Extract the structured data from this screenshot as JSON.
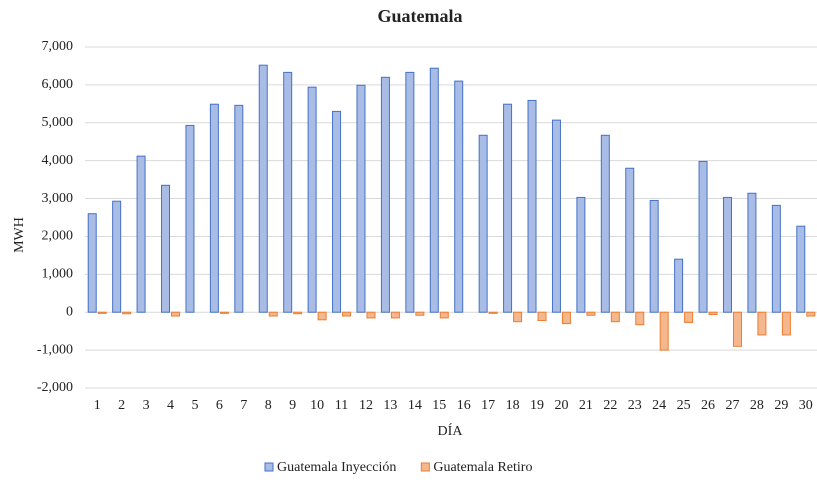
{
  "chart_data": {
    "type": "bar",
    "title": "Guatemala",
    "x_label": "DÍA",
    "y_label": "MWH",
    "categories": [
      "1",
      "2",
      "3",
      "4",
      "5",
      "6",
      "7",
      "8",
      "9",
      "10",
      "11",
      "12",
      "13",
      "14",
      "15",
      "16",
      "17",
      "18",
      "19",
      "20",
      "21",
      "22",
      "23",
      "24",
      "25",
      "26",
      "27",
      "28",
      "29",
      "30"
    ],
    "series": [
      {
        "name": "Guatemala Inyección",
        "color": "#a9bce6",
        "stroke": "#4472c4",
        "values": [
          2600,
          2930,
          4120,
          3350,
          4930,
          5490,
          5460,
          6520,
          6330,
          5940,
          5300,
          5990,
          6200,
          6330,
          6440,
          6100,
          4670,
          5490,
          5590,
          5070,
          3030,
          4670,
          3800,
          2950,
          1400,
          3980,
          3030,
          3140,
          2820,
          2270
        ]
      },
      {
        "name": "Guatemala Retiro",
        "color": "#f5b88e",
        "stroke": "#ed7d31",
        "values": [
          -30,
          -40,
          0,
          -100,
          0,
          -30,
          0,
          -100,
          -40,
          -200,
          -100,
          -150,
          -150,
          -80,
          -150,
          0,
          -30,
          -250,
          -220,
          -300,
          -80,
          -250,
          -330,
          -1000,
          -270,
          -60,
          -900,
          -600,
          -600,
          -100
        ]
      }
    ],
    "ylim": [
      -2000,
      7000
    ],
    "yticks": [
      {
        "value": -2000,
        "label": "-2,000"
      },
      {
        "value": -1000,
        "label": "-1,000"
      },
      0,
      {
        "value": 1000,
        "label": "1,000"
      },
      {
        "value": 2000,
        "label": "2,000"
      },
      {
        "value": 3000,
        "label": "3,000"
      },
      {
        "value": 4000,
        "label": "4,000"
      },
      {
        "value": 5000,
        "label": "5,000"
      },
      {
        "value": 6000,
        "label": "6,000"
      },
      {
        "value": 7000,
        "label": "7,000"
      }
    ],
    "grid": true,
    "legend": "bottom"
  }
}
